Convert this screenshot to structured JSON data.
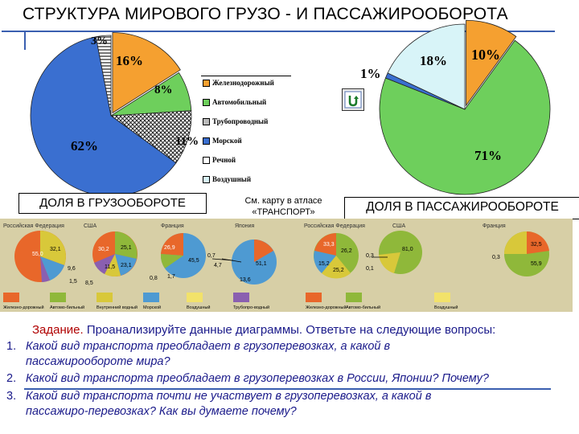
{
  "title": "СТРУКТУРА МИРОВОГО ГРУЗО - И ПАССАЖИРООБОРОТА",
  "chart_data": [
    {
      "type": "pie",
      "title": "ДОЛЯ В ГРУЗООБОРОТЕ",
      "slices": [
        {
          "label": "Железнодорожный",
          "value": 16,
          "text": "16%",
          "color": "#f5a030"
        },
        {
          "label": "Автомобильный",
          "value": 8,
          "text": "8%",
          "color": "#6ecf5c"
        },
        {
          "label": "Трубопроводный",
          "value": 11,
          "text": "11%",
          "color": "#cfcfcf"
        },
        {
          "label": "Морской",
          "value": 62,
          "text": "62%",
          "color": "#3a6fd0"
        },
        {
          "label": "Речной",
          "value": 3,
          "text": "3%",
          "color": "#ffffff"
        }
      ]
    },
    {
      "type": "pie",
      "title": "ДОЛЯ В ПАССАЖИРООБОРОТЕ",
      "slices": [
        {
          "label": "Железнодорожный",
          "value": 10,
          "text": "10%",
          "color": "#f5a030"
        },
        {
          "label": "Автомобильный",
          "value": 71,
          "text": "71%",
          "color": "#6ecf5c"
        },
        {
          "label": "Морской",
          "value": 1,
          "text": "1%",
          "color": "#3a6fd0"
        },
        {
          "label": "Воздушный",
          "value": 18,
          "text": "18%",
          "color": "#d8f4f8"
        }
      ]
    }
  ],
  "legend": [
    {
      "label": "Железнодорожный",
      "color": "#f5a030"
    },
    {
      "label": "Автомобильный",
      "color": "#6ecf5c"
    },
    {
      "label": "Трубопроводный",
      "color": "#bbbbbb"
    },
    {
      "label": "Морской",
      "color": "#3a6fd0"
    },
    {
      "label": "Речной",
      "color": "#ffffff"
    },
    {
      "label": "Воздушный",
      "color": "#d8f4f8"
    }
  ],
  "note": "См. карту в атласе «ТРАНСПОРТ»",
  "atlas": {
    "panels": [
      "Российская Федерация",
      "США",
      "Франция",
      "Япония",
      "Российская Федерация",
      "США",
      "Франция"
    ],
    "legend": [
      "Железно-дорожный",
      "Автомо-бильный",
      "Внутренний водный",
      "Морской",
      "Воздушный",
      "Трубопро-водный",
      "Автомо-бильный",
      "Воздушный",
      "Железно-дорожный"
    ],
    "values": {
      "cargo_rf": [
        "55,0",
        "32,1",
        "9,6",
        "1,5"
      ],
      "cargo_usa": [
        "30,2",
        "25,1",
        "23,1",
        "11,5",
        "8,5"
      ],
      "cargo_fr": [
        "26,9",
        "45,5",
        "0,8",
        "1,7"
      ],
      "cargo_jp": [
        "0,7",
        "4,7",
        "13,6",
        "51,1"
      ],
      "pass_rf": [
        "33,3",
        "26,2",
        "15,2",
        "25,2"
      ],
      "pass_usa": [
        "0,3",
        "0,1",
        "81,0"
      ],
      "pass_fr": [
        "32,5",
        "0,3",
        "55,9"
      ]
    }
  },
  "task": {
    "label": "Задание.",
    "text": "Проанализируйте данные диаграммы. Ответьте на следующие вопросы:"
  },
  "questions": [
    {
      "num": "1.",
      "lines": [
        "Какой вид транспорта преобладает в грузоперевозках, а какой в",
        "пассажирообороте  мира?"
      ]
    },
    {
      "num": "2.",
      "lines": [
        "Какой вид транспорта преобладает в грузоперевозках в России, Японии? Почему?"
      ]
    },
    {
      "num": "3.",
      "lines": [
        "Какой вид транспорта почти не участвует в грузоперевозках, а какой в",
        "пассажиро-перевозках? Как вы думаете почему?"
      ]
    }
  ]
}
